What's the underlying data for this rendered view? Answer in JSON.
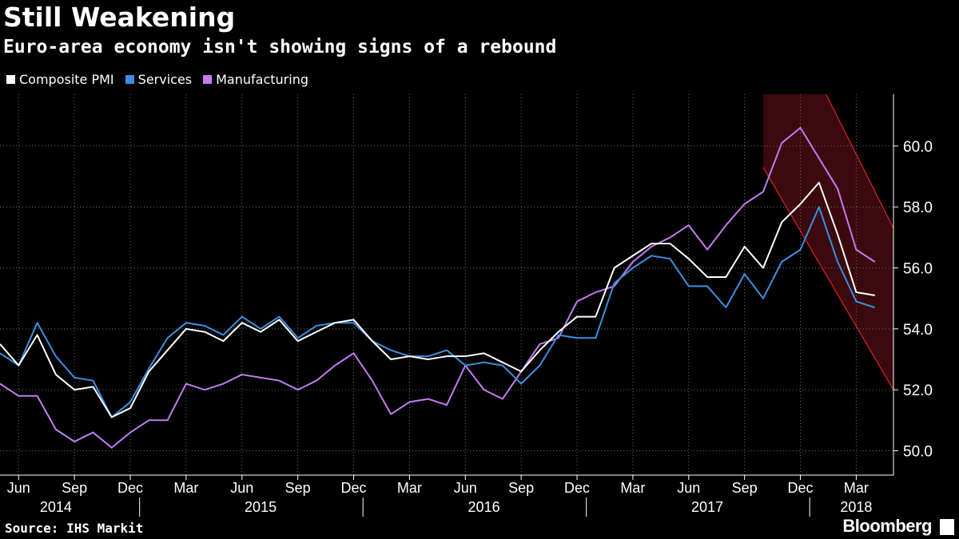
{
  "header": {
    "title": "Still Weakening",
    "subtitle": "Euro-area economy isn't showing signs of a rebound"
  },
  "footer": {
    "source": "Source: IHS Markit",
    "brand": "Bloomberg",
    "brand_icon": "bloomberg-terminal-icon"
  },
  "colors": {
    "background": "#000000",
    "composite": "#ffffff",
    "services": "#3d8fe0",
    "manufacturing": "#c27cf0",
    "highlight_band": "#3a0a0e",
    "highlight_edge": "#e0202a",
    "grid": "#6e6e6e"
  },
  "chart_data": {
    "type": "line",
    "title": "Still Weakening",
    "subtitle": "Euro-area economy isn't showing signs of a rebound",
    "xlabel": "",
    "ylabel": "",
    "ylim": [
      49.2,
      61.7
    ],
    "y_ticks": [
      "50.0",
      "52.0",
      "54.0",
      "56.0",
      "58.0",
      "60.0"
    ],
    "y_tick_values": [
      50,
      52,
      54,
      56,
      58,
      60
    ],
    "y_axis_side": "right",
    "grid": true,
    "legend_position": "top-left",
    "x_month_ticks": [
      {
        "label": "Jun",
        "date": "2014-06"
      },
      {
        "label": "Sep",
        "date": "2014-09"
      },
      {
        "label": "Dec",
        "date": "2014-12"
      },
      {
        "label": "Mar",
        "date": "2015-03"
      },
      {
        "label": "Jun",
        "date": "2015-06"
      },
      {
        "label": "Sep",
        "date": "2015-09"
      },
      {
        "label": "Dec",
        "date": "2015-12"
      },
      {
        "label": "Mar",
        "date": "2016-03"
      },
      {
        "label": "Jun",
        "date": "2016-06"
      },
      {
        "label": "Sep",
        "date": "2016-09"
      },
      {
        "label": "Dec",
        "date": "2016-12"
      },
      {
        "label": "Mar",
        "date": "2017-03"
      },
      {
        "label": "Jun",
        "date": "2017-06"
      },
      {
        "label": "Sep",
        "date": "2017-09"
      },
      {
        "label": "Dec",
        "date": "2017-12"
      },
      {
        "label": "Mar",
        "date": "2018-03"
      }
    ],
    "x_year_labels": [
      {
        "label": "2014",
        "date": "2014-08"
      },
      {
        "label": "2015",
        "date": "2015-07"
      },
      {
        "label": "2016",
        "date": "2016-07"
      },
      {
        "label": "2017",
        "date": "2017-07"
      },
      {
        "label": "2018",
        "date": "2018-03"
      }
    ],
    "x_year_boundaries": [
      "2015-01",
      "2016-01",
      "2017-01",
      "2018-01"
    ],
    "x_range": [
      "2014-05",
      "2018-05"
    ],
    "dates": [
      "2014-05",
      "2014-06",
      "2014-07",
      "2014-08",
      "2014-09",
      "2014-10",
      "2014-11",
      "2014-12",
      "2015-01",
      "2015-02",
      "2015-03",
      "2015-04",
      "2015-05",
      "2015-06",
      "2015-07",
      "2015-08",
      "2015-09",
      "2015-10",
      "2015-11",
      "2015-12",
      "2016-01",
      "2016-02",
      "2016-03",
      "2016-04",
      "2016-05",
      "2016-06",
      "2016-07",
      "2016-08",
      "2016-09",
      "2016-10",
      "2016-11",
      "2016-12",
      "2017-01",
      "2017-02",
      "2017-03",
      "2017-04",
      "2017-05",
      "2017-06",
      "2017-07",
      "2017-08",
      "2017-09",
      "2017-10",
      "2017-11",
      "2017-12",
      "2018-01",
      "2018-02",
      "2018-03",
      "2018-04"
    ],
    "series": [
      {
        "name": "Composite PMI",
        "values": [
          53.5,
          52.8,
          53.8,
          52.5,
          52.0,
          52.1,
          51.1,
          51.4,
          52.6,
          53.3,
          54.0,
          53.9,
          53.6,
          54.2,
          53.9,
          54.3,
          53.6,
          53.9,
          54.2,
          54.3,
          53.6,
          53.0,
          53.1,
          53.0,
          53.1,
          53.1,
          53.2,
          52.9,
          52.6,
          53.3,
          53.9,
          54.4,
          54.4,
          56.0,
          56.4,
          56.8,
          56.8,
          56.3,
          55.7,
          55.7,
          56.7,
          56.0,
          57.5,
          58.1,
          58.8,
          57.1,
          55.2,
          55.1
        ]
      },
      {
        "name": "Services",
        "values": [
          53.2,
          52.8,
          54.2,
          53.1,
          52.4,
          52.3,
          51.1,
          51.6,
          52.7,
          53.7,
          54.2,
          54.1,
          53.8,
          54.4,
          54.0,
          54.4,
          53.7,
          54.1,
          54.2,
          54.2,
          53.6,
          53.3,
          53.1,
          53.1,
          53.3,
          52.8,
          52.9,
          52.8,
          52.2,
          52.8,
          53.8,
          53.7,
          53.7,
          55.5,
          56.0,
          56.4,
          56.3,
          55.4,
          55.4,
          54.7,
          55.8,
          55.0,
          56.2,
          56.6,
          58.0,
          56.2,
          54.9,
          54.7
        ]
      },
      {
        "name": "Manufacturing",
        "values": [
          52.2,
          51.8,
          51.8,
          50.7,
          50.3,
          50.6,
          50.1,
          50.6,
          51.0,
          51.0,
          52.2,
          52.0,
          52.2,
          52.5,
          52.4,
          52.3,
          52.0,
          52.3,
          52.8,
          53.2,
          52.3,
          51.2,
          51.6,
          51.7,
          51.5,
          52.8,
          52.0,
          51.7,
          52.6,
          53.5,
          53.7,
          54.9,
          55.2,
          55.4,
          56.2,
          56.7,
          57.0,
          57.4,
          56.6,
          57.4,
          58.1,
          58.5,
          60.1,
          60.6,
          59.6,
          58.6,
          56.6,
          56.2
        ]
      }
    ],
    "highlight_band": {
      "start_date": "2017-10",
      "lower_line": [
        [
          "2017-10",
          59.3
        ],
        [
          "2018-05",
          52.0
        ]
      ],
      "upper_line": [
        [
          "2017-10",
          65.8
        ],
        [
          "2018-05",
          57.3
        ]
      ]
    }
  }
}
